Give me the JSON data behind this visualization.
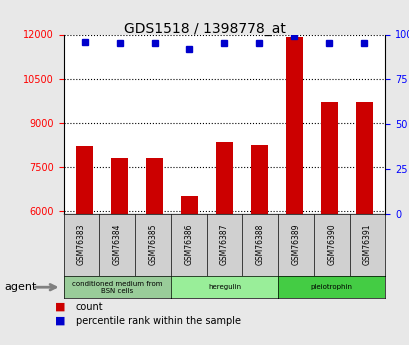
{
  "title": "GDS1518 / 1398778_at",
  "categories": [
    "GSM76383",
    "GSM76384",
    "GSM76385",
    "GSM76386",
    "GSM76387",
    "GSM76388",
    "GSM76389",
    "GSM76390",
    "GSM76391"
  ],
  "bar_values": [
    8200,
    7800,
    7800,
    6500,
    8350,
    8250,
    11900,
    9700,
    9700
  ],
  "percentile_values": [
    96,
    95,
    95,
    92,
    95,
    95,
    99,
    95,
    95
  ],
  "ylim_left": [
    5900,
    12000
  ],
  "ylim_right": [
    0,
    100
  ],
  "yticks_left": [
    6000,
    7500,
    9000,
    10500,
    12000
  ],
  "yticks_right": [
    0,
    25,
    50,
    75,
    100
  ],
  "bar_color": "#cc0000",
  "dot_color": "#0000cc",
  "bg_color": "#f0f0f0",
  "plot_bg": "#ffffff",
  "agent_groups": [
    {
      "label": "conditioned medium from\nBSN cells",
      "start": 0,
      "end": 3,
      "color": "#99cc99"
    },
    {
      "label": "heregulin",
      "start": 3,
      "end": 6,
      "color": "#99ee99"
    },
    {
      "label": "pleiotrophin",
      "start": 6,
      "end": 9,
      "color": "#44cc44"
    }
  ],
  "legend_count_label": "count",
  "legend_pct_label": "percentile rank within the sample",
  "agent_label": "agent"
}
